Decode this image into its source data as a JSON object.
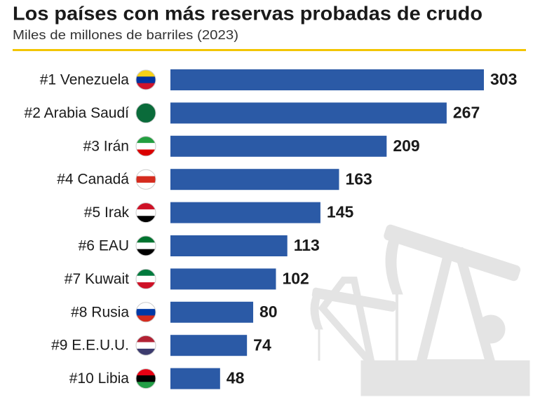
{
  "chart_data": {
    "type": "bar",
    "orientation": "horizontal",
    "title": "Los países con más reservas probadas de crudo",
    "subtitle": "Miles de millones de barriles (2023)",
    "categories": [
      "#1 Venezuela",
      "#2 Arabia Saudí",
      "#3 Irán",
      "#4 Canadá",
      "#5 Irak",
      "#6 EAU",
      "#7 Kuwait",
      "#8 Rusia",
      "#9 E.E.U.U.",
      "#10 Libia"
    ],
    "values": [
      303,
      267,
      209,
      163,
      145,
      113,
      102,
      80,
      74,
      48
    ],
    "color": "#2b5aa6"
  }
}
